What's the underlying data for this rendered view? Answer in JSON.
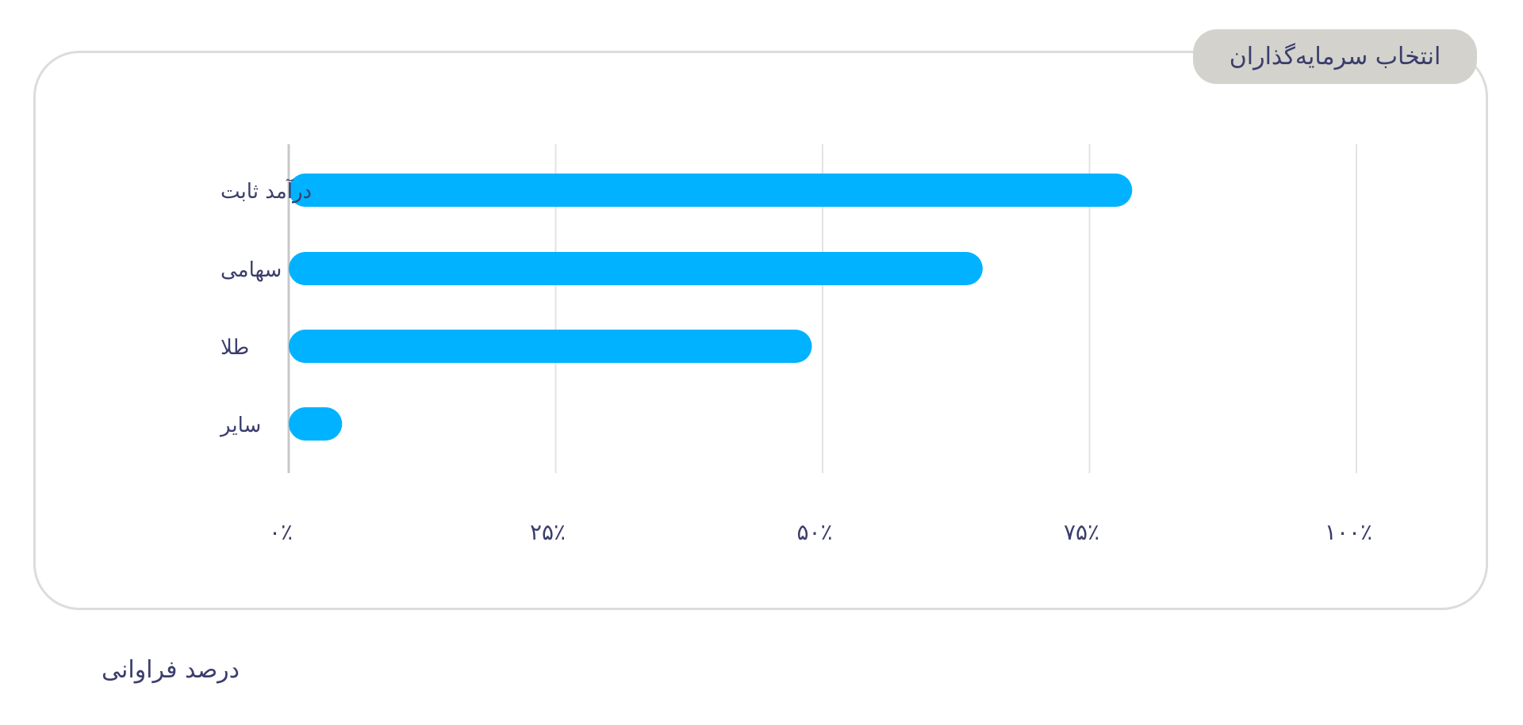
{
  "header": {
    "tab_label": "انتخاب سرمایه‌گذاران"
  },
  "footer": {
    "label": "درصد فراوانی"
  },
  "colors": {
    "bar": "#00b2ff",
    "grid": "#e3e3e3",
    "axis": "#c8c8c8",
    "text": "#3b3d6b",
    "pill": "#d3d2cd",
    "card_border": "#dcdcdc"
  },
  "chart_data": {
    "type": "bar",
    "orientation": "horizontal",
    "categories": [
      "درآمد ثابت",
      "سهامی",
      "طلا",
      "سایر"
    ],
    "values": [
      79,
      65,
      49,
      5
    ],
    "xlim": [
      0,
      100
    ],
    "xticks": [
      0,
      25,
      50,
      75,
      100
    ],
    "xtick_labels": [
      "۰٪",
      "۲۵٪",
      "۵۰٪",
      "۷۵٪",
      "۱۰۰٪"
    ],
    "xlabel": "درصد فراوانی",
    "grid": "vertical"
  }
}
